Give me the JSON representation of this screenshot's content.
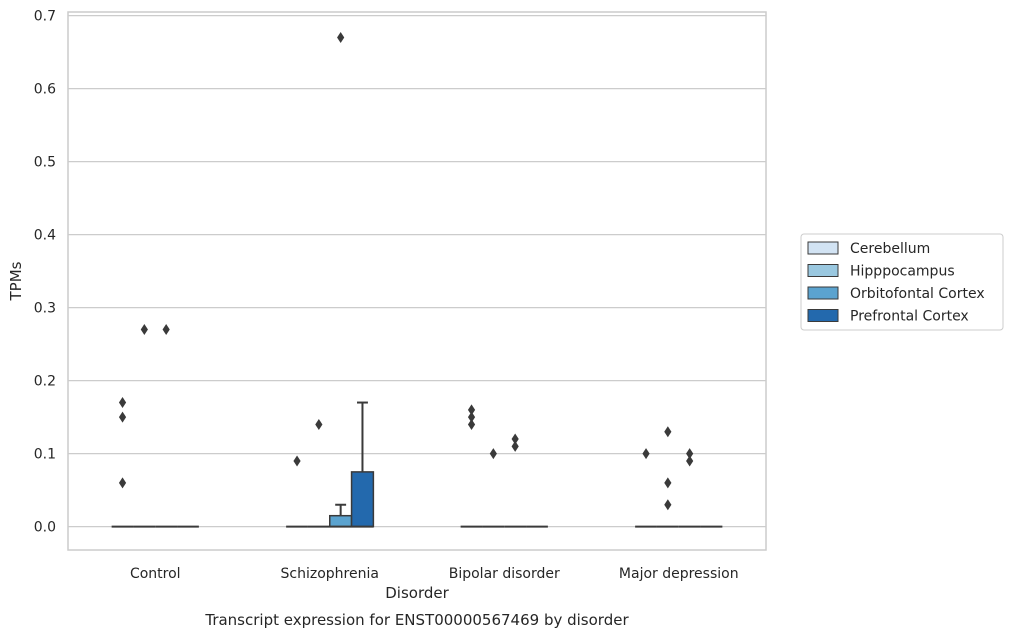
{
  "caption": "Transcript expression for ENST00000567469 by disorder",
  "chart_data": {
    "type": "box",
    "xlabel": "Disorder",
    "ylabel": "TPMs",
    "ylim": [
      -0.032,
      0.705
    ],
    "yticks": [
      0.0,
      0.1,
      0.2,
      0.3,
      0.4,
      0.5,
      0.6,
      0.7
    ],
    "ytick_labels": [
      "0.0",
      "0.1",
      "0.2",
      "0.3",
      "0.4",
      "0.5",
      "0.6",
      "0.7"
    ],
    "grid": "horizontal",
    "legend_placement": "right",
    "categories": [
      "Control",
      "Schizophrenia",
      "Bipolar disorder",
      "Major depression"
    ],
    "series": [
      {
        "name": "Cerebellum",
        "color": "#d2e3f3",
        "boxes": [
          {
            "category": "Control",
            "q1": 0,
            "median": 0,
            "q3": 0,
            "whisker_low": 0,
            "whisker_high": 0,
            "outliers": [
              0.17,
              0.15,
              0.06
            ]
          },
          {
            "category": "Schizophrenia",
            "q1": 0,
            "median": 0,
            "q3": 0,
            "whisker_low": 0,
            "whisker_high": 0,
            "outliers": [
              0.09
            ]
          },
          {
            "category": "Bipolar disorder",
            "q1": 0,
            "median": 0,
            "q3": 0,
            "whisker_low": 0,
            "whisker_high": 0,
            "outliers": [
              0.16,
              0.15,
              0.14
            ]
          },
          {
            "category": "Major depression",
            "q1": 0,
            "median": 0,
            "q3": 0,
            "whisker_low": 0,
            "whisker_high": 0,
            "outliers": [
              0.1
            ]
          }
        ]
      },
      {
        "name": "Hipppocampus",
        "color": "#9ac8e0",
        "boxes": [
          {
            "category": "Control",
            "q1": 0,
            "median": 0,
            "q3": 0,
            "whisker_low": 0,
            "whisker_high": 0,
            "outliers": [
              0.27
            ]
          },
          {
            "category": "Schizophrenia",
            "q1": 0,
            "median": 0,
            "q3": 0,
            "whisker_low": 0,
            "whisker_high": 0,
            "outliers": [
              0.14
            ]
          },
          {
            "category": "Bipolar disorder",
            "q1": 0,
            "median": 0,
            "q3": 0,
            "whisker_low": 0,
            "whisker_high": 0,
            "outliers": [
              0.1
            ]
          },
          {
            "category": "Major depression",
            "q1": 0,
            "median": 0,
            "q3": 0,
            "whisker_low": 0,
            "whisker_high": 0,
            "outliers": [
              0.13,
              0.06,
              0.03
            ]
          }
        ]
      },
      {
        "name": "Orbitofontal Cortex",
        "color": "#5ba3cf",
        "boxes": [
          {
            "category": "Control",
            "q1": 0,
            "median": 0,
            "q3": 0,
            "whisker_low": 0,
            "whisker_high": 0,
            "outliers": [
              0.27
            ]
          },
          {
            "category": "Schizophrenia",
            "q1": 0,
            "median": 0,
            "q3": 0.015,
            "whisker_low": 0,
            "whisker_high": 0.03,
            "outliers": [
              0.67
            ]
          },
          {
            "category": "Bipolar disorder",
            "q1": 0,
            "median": 0,
            "q3": 0,
            "whisker_low": 0,
            "whisker_high": 0,
            "outliers": [
              0.12,
              0.11
            ]
          },
          {
            "category": "Major depression",
            "q1": 0,
            "median": 0,
            "q3": 0,
            "whisker_low": 0,
            "whisker_high": 0,
            "outliers": [
              0.1,
              0.09
            ]
          }
        ]
      },
      {
        "name": "Prefrontal Cortex",
        "color": "#2369ad",
        "boxes": [
          {
            "category": "Control",
            "q1": 0,
            "median": 0,
            "q3": 0,
            "whisker_low": 0,
            "whisker_high": 0,
            "outliers": []
          },
          {
            "category": "Schizophrenia",
            "q1": 0,
            "median": 0,
            "q3": 0.075,
            "whisker_low": 0,
            "whisker_high": 0.17,
            "outliers": []
          },
          {
            "category": "Bipolar disorder",
            "q1": 0,
            "median": 0,
            "q3": 0,
            "whisker_low": 0,
            "whisker_high": 0,
            "outliers": []
          },
          {
            "category": "Major depression",
            "q1": 0,
            "median": 0,
            "q3": 0,
            "whisker_low": 0,
            "whisker_high": 0,
            "outliers": []
          }
        ]
      }
    ]
  }
}
